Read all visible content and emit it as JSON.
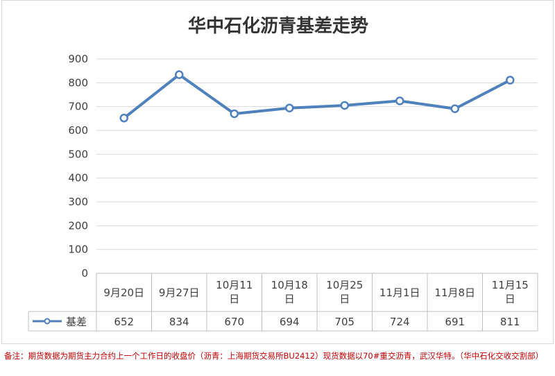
{
  "chart_data": {
    "type": "line",
    "title": "华中石化沥青基差走势",
    "categories": [
      [
        "9月20日"
      ],
      [
        "9月27日"
      ],
      [
        "10月11",
        "日"
      ],
      [
        "10月18",
        "日"
      ],
      [
        "10月25",
        "日"
      ],
      [
        "11月1日"
      ],
      [
        "11月8日"
      ],
      [
        "11月15",
        "日"
      ]
    ],
    "series": [
      {
        "name": "基差",
        "values": [
          652,
          834,
          670,
          694,
          705,
          724,
          691,
          811
        ]
      }
    ],
    "ylim": [
      0,
      900
    ],
    "yticks": [
      0,
      100,
      200,
      300,
      400,
      500,
      600,
      700,
      800,
      900
    ],
    "grid": true,
    "legend": "bottom-left data table",
    "line_color": "#4f81bd"
  },
  "footnote": "备注：期货数据为期货主力合约上一个工作日的收盘价（沥青：上海期货交易所BU2412）现货数据以70#重交沥青，武汉华特。（华中石化交收交割部）"
}
